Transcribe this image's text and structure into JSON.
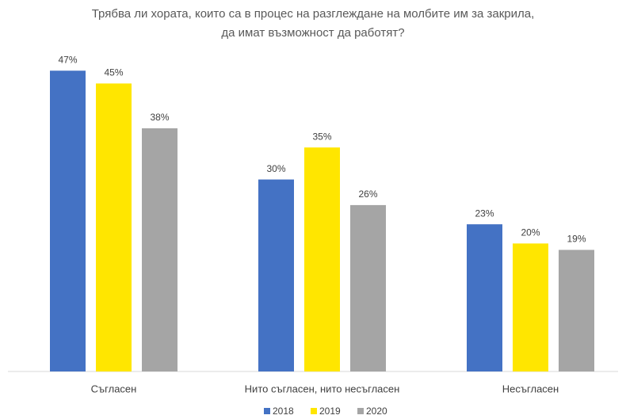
{
  "chart_data": {
    "type": "bar",
    "title": "Трябва ли хората, които са в процес на разглеждане на молбите им за закрила, да имат възможност да работят?",
    "categories": [
      "Съгласен",
      "Нито съгласен, нито несъгласен",
      "Несъгласен"
    ],
    "series": [
      {
        "name": "2018",
        "color": "#4472c4",
        "values": [
          47,
          30,
          23
        ],
        "value_labels": [
          "47%",
          "30%",
          "23%"
        ]
      },
      {
        "name": "2019",
        "color": "#ffe600",
        "values": [
          45,
          35,
          20
        ],
        "value_labels": [
          "45%",
          "35%",
          "20%"
        ]
      },
      {
        "name": "2020",
        "color": "#a5a5a5",
        "values": [
          38,
          26,
          19
        ],
        "value_labels": [
          "38%",
          "26%",
          "19%"
        ]
      }
    ],
    "ylim": [
      0,
      50
    ]
  }
}
